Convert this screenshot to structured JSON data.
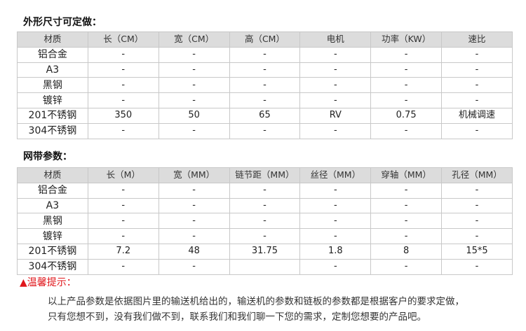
{
  "section1": {
    "title": "外形尺寸可定做：",
    "headers": [
      "材质",
      "长（CM）",
      "宽（CM）",
      "高（CM）",
      "电机",
      "功率（KW）",
      "速比"
    ],
    "rows": [
      [
        "铝合金",
        "-",
        "-",
        "-",
        "-",
        "-",
        "-"
      ],
      [
        "A3",
        "-",
        "-",
        "-",
        "-",
        "-",
        "-"
      ],
      [
        "黑钢",
        "-",
        "-",
        "-",
        "-",
        "-",
        "-"
      ],
      [
        "镀锌",
        "-",
        "-",
        "-",
        "-",
        "-",
        "-"
      ],
      [
        "201不锈钢",
        "350",
        "50",
        "65",
        "RV",
        "0.75",
        "机械调速"
      ],
      [
        "304不锈钢",
        "-",
        "-",
        "-",
        "-",
        "-",
        "-"
      ]
    ]
  },
  "section2": {
    "title": "网带参数：",
    "headers": [
      "材质",
      "长（M）",
      "宽（MM）",
      "链节距（MM）",
      "丝径（MM）",
      "穿轴（MM）",
      "孔径（MM）"
    ],
    "rows": [
      [
        "铝合金",
        "-",
        "-",
        "-",
        "-",
        "-",
        "-"
      ],
      [
        "A3",
        "-",
        "-",
        "-",
        "-",
        "-",
        "-"
      ],
      [
        "黑钢",
        "-",
        "-",
        "-",
        "-",
        "-",
        "-"
      ],
      [
        "镀锌",
        "-",
        "-",
        "-",
        "-",
        "-",
        "-"
      ],
      [
        "201不锈钢",
        "7.2",
        "48",
        "31.75",
        "1.8",
        "8",
        "15*5"
      ],
      [
        "304不锈钢",
        "-",
        "-",
        "",
        "-",
        "-",
        "-"
      ]
    ]
  },
  "notice": {
    "icon": "warning-triangle-icon",
    "label": "▲温馨提示：",
    "color": "#e0161b",
    "lines": [
      "以上产品参数是依据图片里的输送机给出的，输送机的参数和链板的参数都是根据客户的要求定做，",
      "只有您想不到，没有我们做不到，联系我们和我们聊一下您的需求，定制您想要的产品吧。"
    ]
  }
}
